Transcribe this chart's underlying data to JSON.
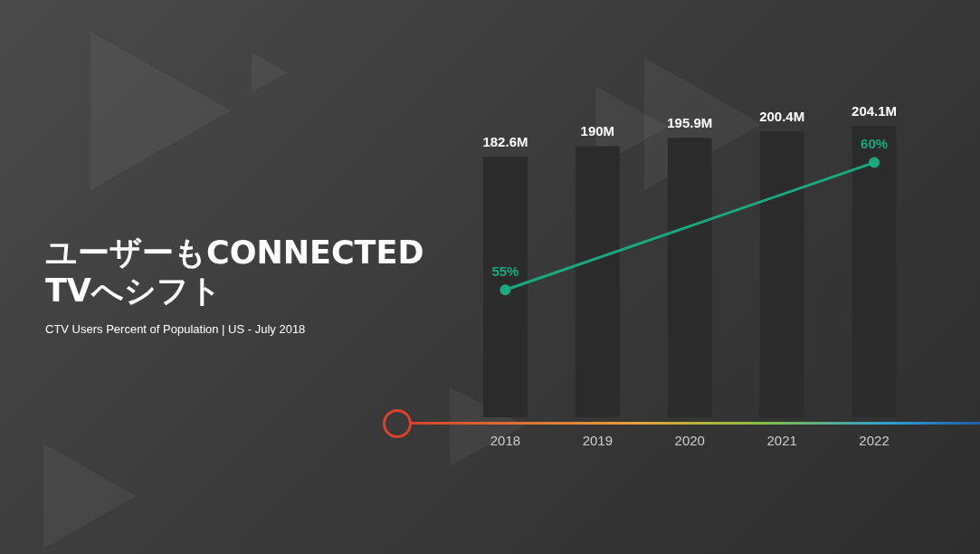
{
  "chart_data": {
    "type": "bar",
    "title": "ユーザーもCONNECTED TVへシフト",
    "subtitle": "CTV Users Percent of Population | US -  July 2018",
    "categories": [
      "2018",
      "2019",
      "2020",
      "2021",
      "2022"
    ],
    "series": [
      {
        "color": "#2b2b2b",
        "values": [
          182.6,
          190,
          195.9,
          200.4,
          204.1
        ],
        "value_labels": [
          "182.6M",
          "190M",
          "195.9M",
          "200.4M",
          "204.1M"
        ]
      },
      {
        "type": "line",
        "axis": "y2",
        "color": "#19a97f",
        "values": [
          55,
          null,
          null,
          null,
          60
        ],
        "value_labels": [
          "55%",
          null,
          null,
          null,
          "60%"
        ]
      }
    ],
    "tick_labels": "x",
    "grid": false,
    "legend": false,
    "marker": "circle"
  }
}
